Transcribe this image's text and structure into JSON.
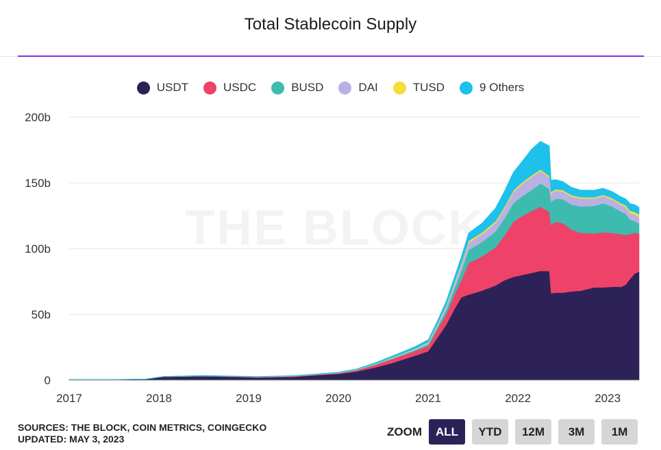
{
  "chart_data": {
    "type": "area",
    "title": "Total Stablecoin Supply",
    "stacked": true,
    "y_axis": {
      "min": 0,
      "max": 200,
      "ticks": [
        "0",
        "50b",
        "100b",
        "150b",
        "200b"
      ],
      "tick_values": [
        0,
        50,
        100,
        150,
        200
      ],
      "unit": "b"
    },
    "x_axis": {
      "min": 2017.0,
      "max": 2023.35,
      "ticks": [
        "2017",
        "2018",
        "2019",
        "2020",
        "2021",
        "2022",
        "2023"
      ],
      "tick_values": [
        2017,
        2018,
        2019,
        2020,
        2021,
        2022,
        2023
      ]
    },
    "grid": true,
    "legend_position": "top-center",
    "x": [
      2017.0,
      2017.5,
      2017.85,
      2018.05,
      2018.5,
      2018.85,
      2019.1,
      2019.5,
      2019.8,
      2020.0,
      2020.2,
      2020.4,
      2020.6,
      2020.85,
      2021.0,
      2021.1,
      2021.2,
      2021.3,
      2021.37,
      2021.45,
      2021.6,
      2021.75,
      2021.85,
      2021.95,
      2022.05,
      2022.15,
      2022.25,
      2022.35,
      2022.37,
      2022.42,
      2022.5,
      2022.6,
      2022.7,
      2022.85,
      2022.95,
      2023.05,
      2023.15,
      2023.2,
      2023.25,
      2023.3,
      2023.35
    ],
    "series": [
      {
        "name": "USDT",
        "color": "#2c2258",
        "values": [
          0.5,
          0.5,
          0.8,
          2.5,
          3.0,
          2.5,
          2.0,
          2.5,
          4.0,
          4.7,
          6.5,
          9.5,
          13.0,
          18.5,
          22.0,
          32.0,
          42.0,
          55.0,
          63.0,
          65.0,
          68.0,
          72.0,
          76.0,
          78.5,
          80.0,
          81.5,
          83.0,
          83.0,
          66.0,
          66.5,
          66.5,
          67.5,
          68.0,
          70.5,
          70.5,
          71.0,
          71.0,
          72.5,
          77.0,
          81.0,
          82.5
        ]
      },
      {
        "name": "USDC",
        "color": "#ee4268",
        "values": [
          0.0,
          0.0,
          0.0,
          0.1,
          0.2,
          0.3,
          0.4,
          0.5,
          0.5,
          0.6,
          1.0,
          1.8,
          3.0,
          3.5,
          4.0,
          6.0,
          8.0,
          11.0,
          13.0,
          24.0,
          26.0,
          29.0,
          34.0,
          42.0,
          45.0,
          47.0,
          49.0,
          45.0,
          52.0,
          54.0,
          53.0,
          47.0,
          44.0,
          41.0,
          42.0,
          41.0,
          40.0,
          38.0,
          34.0,
          31.0,
          29.0
        ]
      },
      {
        "name": "BUSD",
        "color": "#3dbbaf",
        "values": [
          0.0,
          0.0,
          0.0,
          0.0,
          0.0,
          0.0,
          0.0,
          0.0,
          0.0,
          0.1,
          0.2,
          0.3,
          0.5,
          0.8,
          1.2,
          2.0,
          3.0,
          5.0,
          7.0,
          10.0,
          11.0,
          12.0,
          13.0,
          14.0,
          15.0,
          16.0,
          17.5,
          17.5,
          17.5,
          17.5,
          18.0,
          19.0,
          20.0,
          21.0,
          22.0,
          20.0,
          17.0,
          16.0,
          11.0,
          9.0,
          7.5
        ]
      },
      {
        "name": "DAI",
        "color": "#b9b1e3",
        "values": [
          0.0,
          0.0,
          0.0,
          0.0,
          0.0,
          0.0,
          0.0,
          0.0,
          0.0,
          0.1,
          0.1,
          0.2,
          0.3,
          0.5,
          1.0,
          1.5,
          2.5,
          3.5,
          4.5,
          5.5,
          6.0,
          6.5,
          7.5,
          8.5,
          9.5,
          9.8,
          9.5,
          8.5,
          6.5,
          6.0,
          6.0,
          6.0,
          6.0,
          5.5,
          5.5,
          5.5,
          5.2,
          5.0,
          5.0,
          5.0,
          5.0
        ]
      },
      {
        "name": "TUSD",
        "color": "#f5dd3c",
        "values": [
          0.0,
          0.0,
          0.0,
          0.1,
          0.1,
          0.1,
          0.1,
          0.1,
          0.1,
          0.1,
          0.2,
          0.3,
          0.4,
          0.5,
          0.6,
          0.8,
          1.0,
          1.2,
          1.3,
          1.4,
          1.4,
          1.4,
          1.3,
          1.3,
          1.2,
          1.2,
          1.2,
          1.2,
          1.1,
          1.1,
          1.1,
          1.1,
          1.1,
          1.0,
          1.0,
          1.0,
          1.2,
          1.5,
          1.8,
          2.0,
          2.0
        ]
      },
      {
        "name": "9 Others",
        "color": "#1ec0ec",
        "values": [
          0.1,
          0.1,
          0.1,
          0.2,
          0.3,
          0.3,
          0.3,
          0.4,
          0.4,
          0.5,
          0.6,
          0.9,
          1.2,
          1.6,
          2.0,
          2.5,
          3.5,
          4.3,
          5.2,
          6.0,
          7.0,
          10.0,
          12.0,
          14.0,
          16.0,
          20.0,
          21.5,
          23.0,
          9.0,
          7.5,
          6.5,
          6.0,
          5.5,
          5.5,
          5.0,
          5.0,
          5.0,
          5.0,
          5.5,
          5.5,
          5.5
        ]
      }
    ]
  },
  "watermark": "THE BLOCK",
  "footer": {
    "sources": "SOURCES: THE BLOCK, COIN METRICS, COINGECKO",
    "updated": "UPDATED: MAY 3, 2023"
  },
  "zoom": {
    "label": "ZOOM",
    "buttons": [
      "ALL",
      "YTD",
      "12M",
      "3M",
      "1M"
    ],
    "active": "ALL"
  }
}
